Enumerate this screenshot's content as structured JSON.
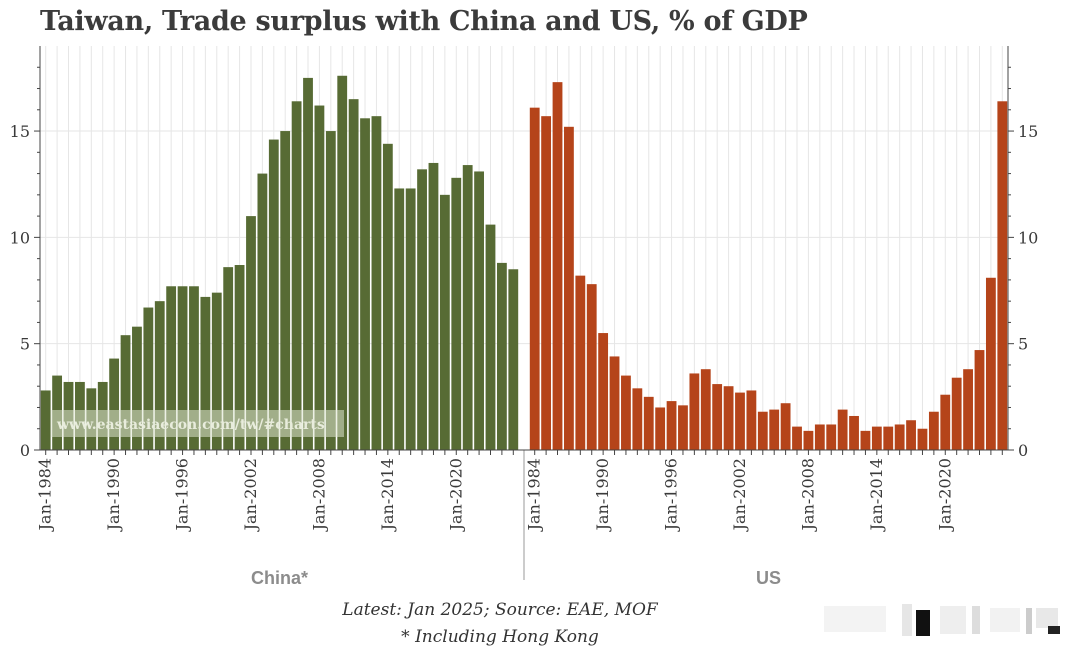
{
  "title": "Taiwan, Trade surplus with China and US, % of GDP",
  "source_note": "Latest: Jan 2025; Source: EAE, MOF",
  "footnote": "* Including Hong Kong",
  "watermark": "www.eastasiaecon.com/tw/#charts",
  "colors": {
    "China*": "#576b34",
    "US": "#b5441a",
    "grid": "#e6e6e6"
  },
  "chart_data": {
    "type": "bar",
    "title": "Taiwan, Trade surplus with China and US, % of GDP",
    "ylim": [
      0,
      19
    ],
    "y_ticks": [
      0,
      5,
      10,
      15
    ],
    "grid": true,
    "panels": [
      {
        "name": "China*",
        "x_tick_labels": [
          "Jan-1984",
          "Jan-1990",
          "Jan-1996",
          "Jan-2002",
          "Jan-2008",
          "Jan-2014",
          "Jan-2020"
        ],
        "x": [
          1984,
          1985,
          1986,
          1987,
          1988,
          1989,
          1990,
          1991,
          1992,
          1993,
          1994,
          1995,
          1996,
          1997,
          1998,
          1999,
          2000,
          2001,
          2002,
          2003,
          2004,
          2005,
          2006,
          2007,
          2008,
          2009,
          2010,
          2011,
          2012,
          2013,
          2014,
          2015,
          2016,
          2017,
          2018,
          2019,
          2020,
          2021,
          2022,
          2023,
          2024,
          2025
        ],
        "values": [
          2.8,
          3.5,
          3.2,
          3.2,
          2.9,
          3.2,
          4.3,
          5.4,
          5.8,
          6.7,
          7.0,
          7.7,
          7.7,
          7.7,
          7.2,
          7.4,
          8.6,
          8.7,
          11.0,
          13.0,
          14.6,
          15.0,
          16.4,
          17.5,
          16.2,
          15.0,
          17.6,
          16.5,
          15.6,
          15.7,
          14.4,
          12.3,
          12.3,
          13.2,
          13.5,
          12.0,
          12.8,
          13.4,
          13.1,
          10.6,
          8.8,
          8.5
        ]
      },
      {
        "name": "US",
        "x_tick_labels": [
          "Jan-1984",
          "Jan-1990",
          "Jan-1996",
          "Jan-2002",
          "Jan-2008",
          "Jan-2014",
          "Jan-2020"
        ],
        "x": [
          1984,
          1985,
          1986,
          1987,
          1988,
          1989,
          1990,
          1991,
          1992,
          1993,
          1994,
          1995,
          1996,
          1997,
          1998,
          1999,
          2000,
          2001,
          2002,
          2003,
          2004,
          2005,
          2006,
          2007,
          2008,
          2009,
          2010,
          2011,
          2012,
          2013,
          2014,
          2015,
          2016,
          2017,
          2018,
          2019,
          2020,
          2021,
          2022,
          2023,
          2024,
          2025
        ],
        "values": [
          16.1,
          15.7,
          17.3,
          15.2,
          8.2,
          7.8,
          5.5,
          4.4,
          3.5,
          2.9,
          2.5,
          2.0,
          2.3,
          2.1,
          3.6,
          3.8,
          3.1,
          3.0,
          2.7,
          2.8,
          1.8,
          1.9,
          2.2,
          1.1,
          0.9,
          1.2,
          1.2,
          1.9,
          1.6,
          0.9,
          1.1,
          1.1,
          1.2,
          1.4,
          1.0,
          1.8,
          2.6,
          3.4,
          3.8,
          4.7,
          8.1,
          16.4
        ]
      }
    ]
  }
}
